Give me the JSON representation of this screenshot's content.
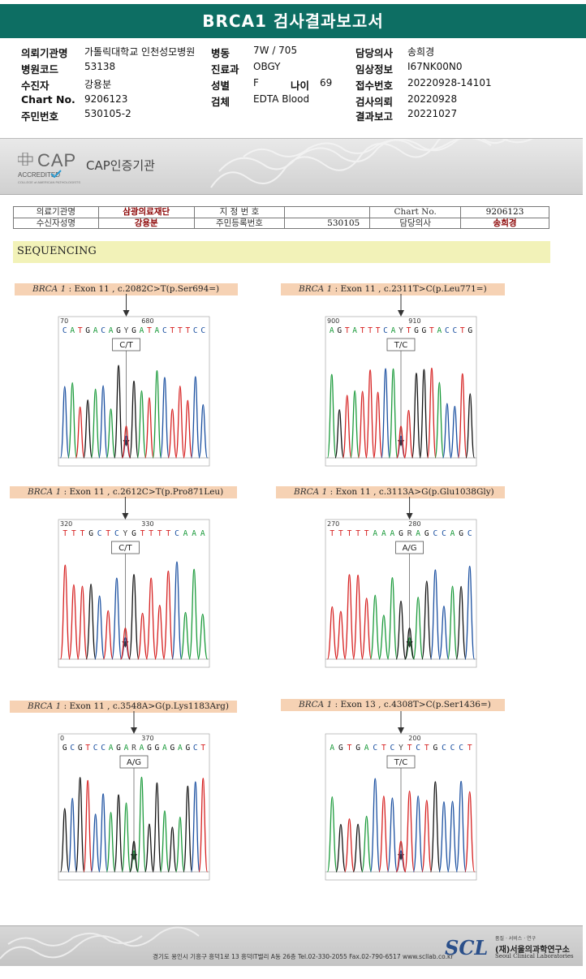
{
  "title": "BRCA1 검사결과보고서",
  "header_info": {
    "institution_label": "의뢰기관명",
    "institution": "가톨릭대학교 인천성모병원",
    "ward_label": "병동",
    "ward": "7W / 705",
    "doctor_label": "담당의사",
    "doctor": "송희경",
    "hospital_code_label": "병원코드",
    "hospital_code": "53138",
    "dept_label": "진료과",
    "dept": "OBGY",
    "clinical_label": "임상정보",
    "clinical": "I67NK00N0",
    "patient_label": "수진자",
    "patient": "강용분",
    "sex_label": "성별",
    "sex": "F",
    "age_label": "나이",
    "age": "69",
    "receipt_label": "접수번호",
    "receipt": "20220928-14101",
    "chart_label": "Chart No.",
    "chart": "9206123",
    "specimen_label": "검체",
    "specimen": "EDTA Blood",
    "request_label": "검사의뢰",
    "request_date": "20220928",
    "id_label": "주민번호",
    "id_number": "530105-2",
    "report_label": "결과보고",
    "report_date": "20221027"
  },
  "banner": {
    "cap_logo": "CAP",
    "cap_accredited": "ACCREDITED",
    "cap_college": "COLLEGE of AMERICAN PATHOLOGISTS",
    "cap_certified": "CAP인증기관"
  },
  "info_table": {
    "r1": [
      "의료기관명",
      "삼광의료재단",
      "지 정 번 호",
      "",
      "Chart No.",
      "9206123"
    ],
    "r2": [
      "수신자성명",
      "강용분",
      "주민등록번호",
      "530105",
      "담당의사",
      "송희경"
    ]
  },
  "section_title": "SEQUENCING",
  "variants": [
    {
      "gene": "BRCA 1",
      "text": " : Exon 11 , c.2082C>T(p.Ser694=)",
      "seq": "CATGACAGYGATACTTTCC",
      "ruler_left": "70",
      "ruler_right": "680",
      "call": "C/T"
    },
    {
      "gene": "BRCA 1",
      "text": " : Exon 11 , c.2311T>C(p.Leu771=)",
      "seq": "AGTATTTCAYTGGTACCTG",
      "ruler_left": "900",
      "ruler_right": "910",
      "call": "T/C"
    },
    {
      "gene": "BRCA 1",
      "text": " : Exon 11 , c.2612C>T(p.Pro871Leu)",
      "seq": "TTTGCTCYGTTTTCAAA",
      "ruler_left": "320",
      "ruler_right": "330",
      "call": "C/T"
    },
    {
      "gene": "BRCA 1",
      "text": " : Exon 11 , c.3113A>G(p.Glu1038Gly)",
      "seq": "TTTTTAAAGRAGCCAGC",
      "ruler_left": "270",
      "ruler_right": "280",
      "call": "A/G"
    },
    {
      "gene": "BRCA 1",
      "text": " : Exon 11 , c.3548A>G(p.Lys1183Arg)",
      "seq": "GCGTCCAGARAGGAGAGCT",
      "ruler_left": "0",
      "ruler_right": "370",
      "call": "A/G"
    },
    {
      "gene": "BRCA 1",
      "text": " : Exon 13 , c.4308T>C(p.Ser1436=)",
      "seq": "AGTGACTCYTCTGCCCT",
      "ruler_left": "",
      "ruler_right": "200",
      "call": "T/C"
    }
  ],
  "colors": {
    "A": "#1a9a3a",
    "C": "#1a4fa0",
    "G": "#111111",
    "T": "#d62020",
    "het": "#444444"
  },
  "footer": {
    "address": "경기도 용인시 기흥구 흥덕1로 13 흥덕IT밸리 A동 26층  Tel.02-330-2055  Fax.02-790-6517  www.scllab.co.kr",
    "logo": "SCL",
    "tagline": "품질 · 서비스 · 연구",
    "name_kr": "(재)서울의과학연구소",
    "name_en": "Seoul Clinical Laboratories"
  }
}
